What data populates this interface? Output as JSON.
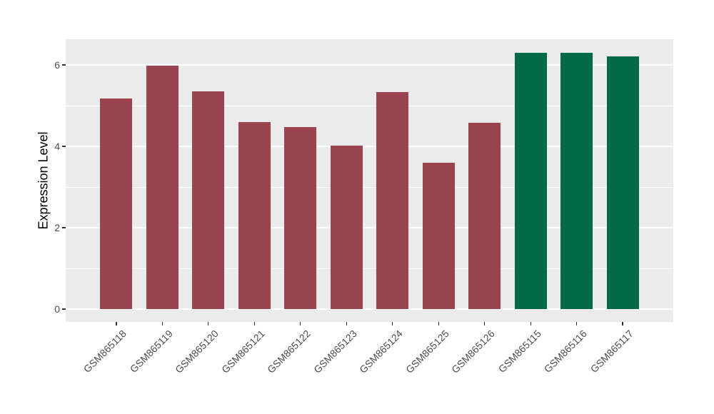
{
  "chart_data": {
    "type": "bar",
    "title": "",
    "xlabel": "",
    "ylabel": "Expression Level",
    "categories": [
      "GSM865118",
      "GSM865119",
      "GSM865120",
      "GSM865121",
      "GSM865122",
      "GSM865123",
      "GSM865124",
      "GSM865125",
      "GSM865126",
      "GSM865115",
      "GSM865116",
      "GSM865117"
    ],
    "values": [
      5.18,
      5.98,
      5.35,
      4.6,
      4.47,
      4.02,
      5.33,
      3.59,
      4.58,
      6.29,
      6.29,
      6.21
    ],
    "bar_colors": [
      "#9A4450",
      "#9A4450",
      "#9A4450",
      "#9A4450",
      "#9A4450",
      "#9A4450",
      "#9A4450",
      "#9A4450",
      "#9A4450",
      "#026A46",
      "#026A46",
      "#026A46"
    ],
    "group_colors": {
      "maroon": "#9A4450",
      "green": "#026A46"
    },
    "ytick_labels": [
      "0",
      "2",
      "4",
      "6"
    ],
    "ytick_values": [
      0,
      2,
      4,
      6
    ],
    "minor_tick_values": [
      1,
      3,
      5
    ],
    "ylim": [
      -0.32,
      6.63
    ],
    "grid": "on",
    "legend": "none",
    "bar_width_fraction": 0.7,
    "panel_background": "#EBEBEB",
    "grid_color": "#FFFFFF",
    "axis_text_color": "#4D4D4D"
  }
}
